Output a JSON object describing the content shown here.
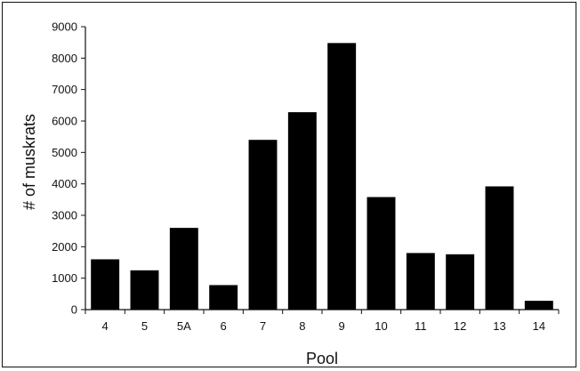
{
  "chart_data": {
    "type": "bar",
    "title": "",
    "xlabel": "Pool",
    "ylabel": "# of muskrats",
    "categories": [
      "4",
      "5",
      "5A",
      "6",
      "7",
      "8",
      "9",
      "10",
      "11",
      "12",
      "13",
      "14"
    ],
    "values": [
      1600,
      1250,
      2600,
      780,
      5400,
      6280,
      8480,
      3580,
      1800,
      1760,
      3920,
      280
    ],
    "ylim": [
      0,
      9000
    ],
    "yticks": [
      "0",
      "1000",
      "2000",
      "3000",
      "4000",
      "5000",
      "6000",
      "7000",
      "8000",
      "9000"
    ],
    "grid": false,
    "legend": "none",
    "colors": {
      "bar": "#000000",
      "axis": "#111111",
      "frame": "#111111"
    }
  }
}
